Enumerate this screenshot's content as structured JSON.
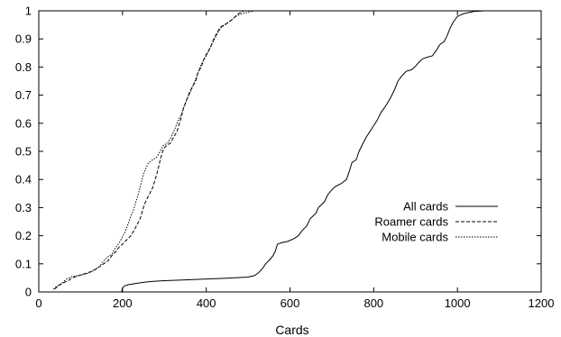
{
  "chart_data": {
    "type": "line",
    "title": "",
    "xlabel": "Cards",
    "ylabel": "",
    "xlim": [
      0,
      1200
    ],
    "ylim": [
      0,
      1
    ],
    "xticks": [
      0,
      200,
      400,
      600,
      800,
      1000,
      1200
    ],
    "yticks": [
      0,
      0.1,
      0.2,
      0.3,
      0.4,
      0.5,
      0.6,
      0.7,
      0.8,
      0.9,
      1
    ],
    "xtick_labels": [
      "0",
      "200",
      "400",
      "600",
      "800",
      "1000",
      "1200"
    ],
    "ytick_labels": [
      "0",
      "0.1",
      "0.2",
      "0.3",
      "0.4",
      "0.5",
      "0.6",
      "0.7",
      "0.8",
      "0.9",
      "1"
    ],
    "grid": false,
    "legend_position": "right",
    "series": [
      {
        "name": "All cards",
        "dash": "solid",
        "points": [
          [
            198,
            0.0
          ],
          [
            200,
            0.015
          ],
          [
            205,
            0.022
          ],
          [
            215,
            0.026
          ],
          [
            240,
            0.032
          ],
          [
            265,
            0.037
          ],
          [
            300,
            0.04
          ],
          [
            350,
            0.043
          ],
          [
            400,
            0.046
          ],
          [
            450,
            0.049
          ],
          [
            500,
            0.053
          ],
          [
            515,
            0.058
          ],
          [
            525,
            0.068
          ],
          [
            535,
            0.085
          ],
          [
            542,
            0.1
          ],
          [
            552,
            0.115
          ],
          [
            560,
            0.13
          ],
          [
            565,
            0.145
          ],
          [
            570,
            0.17
          ],
          [
            580,
            0.175
          ],
          [
            595,
            0.18
          ],
          [
            610,
            0.19
          ],
          [
            620,
            0.2
          ],
          [
            630,
            0.22
          ],
          [
            640,
            0.235
          ],
          [
            648,
            0.26
          ],
          [
            655,
            0.27
          ],
          [
            662,
            0.28
          ],
          [
            668,
            0.3
          ],
          [
            675,
            0.31
          ],
          [
            682,
            0.32
          ],
          [
            690,
            0.345
          ],
          [
            698,
            0.36
          ],
          [
            708,
            0.375
          ],
          [
            722,
            0.385
          ],
          [
            735,
            0.4
          ],
          [
            742,
            0.43
          ],
          [
            748,
            0.46
          ],
          [
            758,
            0.47
          ],
          [
            765,
            0.5
          ],
          [
            775,
            0.53
          ],
          [
            782,
            0.55
          ],
          [
            795,
            0.58
          ],
          [
            808,
            0.61
          ],
          [
            818,
            0.64
          ],
          [
            828,
            0.66
          ],
          [
            840,
            0.69
          ],
          [
            850,
            0.72
          ],
          [
            858,
            0.75
          ],
          [
            868,
            0.77
          ],
          [
            878,
            0.785
          ],
          [
            890,
            0.79
          ],
          [
            898,
            0.8
          ],
          [
            910,
            0.82
          ],
          [
            918,
            0.83
          ],
          [
            928,
            0.835
          ],
          [
            940,
            0.84
          ],
          [
            950,
            0.86
          ],
          [
            958,
            0.88
          ],
          [
            968,
            0.89
          ],
          [
            975,
            0.91
          ],
          [
            983,
            0.94
          ],
          [
            990,
            0.96
          ],
          [
            1000,
            0.98
          ],
          [
            1015,
            0.99
          ],
          [
            1040,
            0.998
          ],
          [
            1065,
            1.0
          ]
        ]
      },
      {
        "name": "Roamer cards",
        "dash": "dashed",
        "points": [
          [
            38,
            0.01
          ],
          [
            45,
            0.02
          ],
          [
            55,
            0.03
          ],
          [
            70,
            0.04
          ],
          [
            80,
            0.05
          ],
          [
            100,
            0.06
          ],
          [
            120,
            0.07
          ],
          [
            135,
            0.08
          ],
          [
            150,
            0.095
          ],
          [
            165,
            0.11
          ],
          [
            175,
            0.13
          ],
          [
            185,
            0.145
          ],
          [
            192,
            0.16
          ],
          [
            200,
            0.17
          ],
          [
            210,
            0.185
          ],
          [
            220,
            0.2
          ],
          [
            228,
            0.22
          ],
          [
            235,
            0.24
          ],
          [
            242,
            0.26
          ],
          [
            248,
            0.29
          ],
          [
            252,
            0.31
          ],
          [
            258,
            0.33
          ],
          [
            265,
            0.35
          ],
          [
            272,
            0.37
          ],
          [
            278,
            0.4
          ],
          [
            282,
            0.42
          ],
          [
            287,
            0.45
          ],
          [
            290,
            0.47
          ],
          [
            294,
            0.49
          ],
          [
            298,
            0.51
          ],
          [
            305,
            0.52
          ],
          [
            315,
            0.53
          ],
          [
            322,
            0.55
          ],
          [
            330,
            0.57
          ],
          [
            336,
            0.6
          ],
          [
            340,
            0.62
          ],
          [
            345,
            0.65
          ],
          [
            350,
            0.67
          ],
          [
            355,
            0.69
          ],
          [
            360,
            0.71
          ],
          [
            367,
            0.73
          ],
          [
            375,
            0.75
          ],
          [
            380,
            0.78
          ],
          [
            388,
            0.8
          ],
          [
            395,
            0.83
          ],
          [
            402,
            0.85
          ],
          [
            410,
            0.87
          ],
          [
            418,
            0.9
          ],
          [
            425,
            0.92
          ],
          [
            433,
            0.94
          ],
          [
            442,
            0.95
          ],
          [
            455,
            0.96
          ],
          [
            466,
            0.975
          ],
          [
            477,
            0.99
          ],
          [
            490,
            1.0
          ],
          [
            540,
            1.0
          ]
        ]
      },
      {
        "name": "Mobile cards",
        "dash": "dotted",
        "points": [
          [
            35,
            0.01
          ],
          [
            42,
            0.02
          ],
          [
            55,
            0.03
          ],
          [
            65,
            0.045
          ],
          [
            80,
            0.055
          ],
          [
            100,
            0.06
          ],
          [
            115,
            0.065
          ],
          [
            130,
            0.075
          ],
          [
            145,
            0.09
          ],
          [
            155,
            0.11
          ],
          [
            165,
            0.125
          ],
          [
            175,
            0.135
          ],
          [
            180,
            0.15
          ],
          [
            190,
            0.17
          ],
          [
            198,
            0.19
          ],
          [
            205,
            0.21
          ],
          [
            213,
            0.24
          ],
          [
            220,
            0.27
          ],
          [
            226,
            0.29
          ],
          [
            232,
            0.32
          ],
          [
            238,
            0.35
          ],
          [
            245,
            0.39
          ],
          [
            250,
            0.42
          ],
          [
            256,
            0.44
          ],
          [
            262,
            0.46
          ],
          [
            272,
            0.47
          ],
          [
            282,
            0.48
          ],
          [
            290,
            0.5
          ],
          [
            297,
            0.52
          ],
          [
            308,
            0.53
          ],
          [
            316,
            0.55
          ],
          [
            325,
            0.58
          ],
          [
            333,
            0.61
          ],
          [
            340,
            0.63
          ],
          [
            347,
            0.66
          ],
          [
            355,
            0.69
          ],
          [
            362,
            0.71
          ],
          [
            370,
            0.74
          ],
          [
            378,
            0.77
          ],
          [
            385,
            0.8
          ],
          [
            392,
            0.82
          ],
          [
            400,
            0.84
          ],
          [
            407,
            0.86
          ],
          [
            413,
            0.88
          ],
          [
            420,
            0.9
          ],
          [
            427,
            0.92
          ],
          [
            435,
            0.94
          ],
          [
            445,
            0.95
          ],
          [
            458,
            0.965
          ],
          [
            470,
            0.98
          ],
          [
            485,
            0.99
          ],
          [
            500,
            0.995
          ],
          [
            515,
            1.0
          ],
          [
            545,
            1.0
          ]
        ]
      }
    ]
  }
}
